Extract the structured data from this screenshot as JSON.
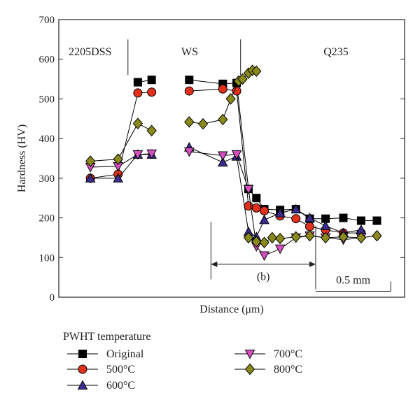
{
  "chart_data": {
    "type": "scatter",
    "xlabel": "Distance (μm)",
    "ylabel": "Hardness (HV)",
    "ylim": [
      0,
      700
    ],
    "yticks": [
      0,
      100,
      200,
      300,
      400,
      500,
      600,
      700
    ],
    "x_tick_labels_shown": false,
    "grid": false,
    "regions": [
      {
        "name": "2205DSS",
        "dx": 0.5
      },
      {
        "name": "WS",
        "dx": 6.2
      },
      {
        "name": "Q235",
        "dx": 13.4
      }
    ],
    "region_dividers": [
      3.5,
      9.2
    ],
    "annotations": {
      "b_label": "(b)",
      "b_span": [
        7.7,
        13.0
      ],
      "scale_label": "0.5 mm",
      "scale_span": [
        13.0,
        16.8
      ]
    },
    "legend": {
      "title": "PWHT temperature",
      "position": "bottom"
    },
    "series": [
      {
        "name": "Original",
        "marker": "square",
        "color": "#000000",
        "points": [
          [
            4.0,
            542
          ],
          [
            4.7,
            548
          ],
          [
            6.6,
            548
          ],
          [
            8.3,
            538
          ],
          [
            9.0,
            540
          ],
          [
            9.6,
            273
          ],
          [
            10.0,
            250
          ],
          [
            10.4,
            222
          ],
          [
            11.2,
            220
          ],
          [
            12.0,
            222
          ],
          [
            12.7,
            198
          ],
          [
            13.5,
            198
          ],
          [
            14.4,
            200
          ],
          [
            15.3,
            193
          ],
          [
            16.1,
            193
          ]
        ]
      },
      {
        "name": "500°C",
        "marker": "circle",
        "color": "#e0311c",
        "points": [
          [
            1.6,
            300
          ],
          [
            3.0,
            310
          ],
          [
            4.0,
            515
          ],
          [
            4.7,
            517
          ],
          [
            6.6,
            520
          ],
          [
            8.3,
            525
          ],
          [
            9.0,
            520
          ],
          [
            9.6,
            230
          ],
          [
            10.0,
            225
          ],
          [
            10.4,
            218
          ],
          [
            11.2,
            205
          ],
          [
            12.0,
            198
          ],
          [
            12.7,
            178
          ],
          [
            13.5,
            170
          ],
          [
            14.4,
            162
          ],
          [
            15.3,
            162
          ]
        ]
      },
      {
        "name": "600°C",
        "marker": "triangle-up",
        "color": "#3a2b8e",
        "points": [
          [
            1.6,
            300
          ],
          [
            3.0,
            300
          ],
          [
            4.0,
            360
          ],
          [
            4.7,
            360
          ],
          [
            6.6,
            378
          ],
          [
            8.3,
            340
          ],
          [
            9.0,
            355
          ],
          [
            9.6,
            165
          ],
          [
            10.0,
            152
          ],
          [
            10.4,
            195
          ],
          [
            11.2,
            212
          ],
          [
            12.0,
            222
          ],
          [
            12.7,
            200
          ],
          [
            13.5,
            180
          ],
          [
            14.4,
            162
          ],
          [
            15.3,
            170
          ]
        ]
      },
      {
        "name": "700°C",
        "marker": "triangle-down",
        "color": "#d64fc0",
        "points": [
          [
            1.6,
            328
          ],
          [
            3.0,
            330
          ],
          [
            4.0,
            360
          ],
          [
            4.7,
            362
          ],
          [
            6.6,
            367
          ],
          [
            8.3,
            357
          ],
          [
            9.0,
            360
          ],
          [
            9.6,
            272
          ],
          [
            10.0,
            128
          ],
          [
            10.4,
            105
          ],
          [
            11.2,
            122
          ],
          [
            12.0,
            150
          ],
          [
            12.7,
            155
          ],
          [
            13.5,
            150
          ],
          [
            14.4,
            145
          ],
          [
            15.3,
            150
          ]
        ]
      },
      {
        "name": "800°C",
        "marker": "diamond",
        "color": "#8a8a1c",
        "points": [
          [
            1.6,
            343
          ],
          [
            3.0,
            348
          ],
          [
            4.0,
            438
          ],
          [
            4.7,
            420
          ],
          [
            6.6,
            442
          ],
          [
            7.3,
            437
          ],
          [
            8.3,
            448
          ],
          [
            8.7,
            500
          ],
          [
            9.1,
            545
          ],
          [
            9.3,
            550
          ],
          [
            9.6,
            565
          ],
          [
            9.8,
            572
          ],
          [
            10.0,
            570
          ],
          [
            9.6,
            150
          ],
          [
            10.0,
            140
          ],
          [
            10.4,
            138
          ],
          [
            10.8,
            150
          ],
          [
            11.2,
            148
          ],
          [
            12.0,
            152
          ],
          [
            12.7,
            155
          ],
          [
            13.5,
            150
          ],
          [
            14.4,
            152
          ],
          [
            15.3,
            150
          ],
          [
            16.1,
            155
          ]
        ]
      }
    ]
  }
}
